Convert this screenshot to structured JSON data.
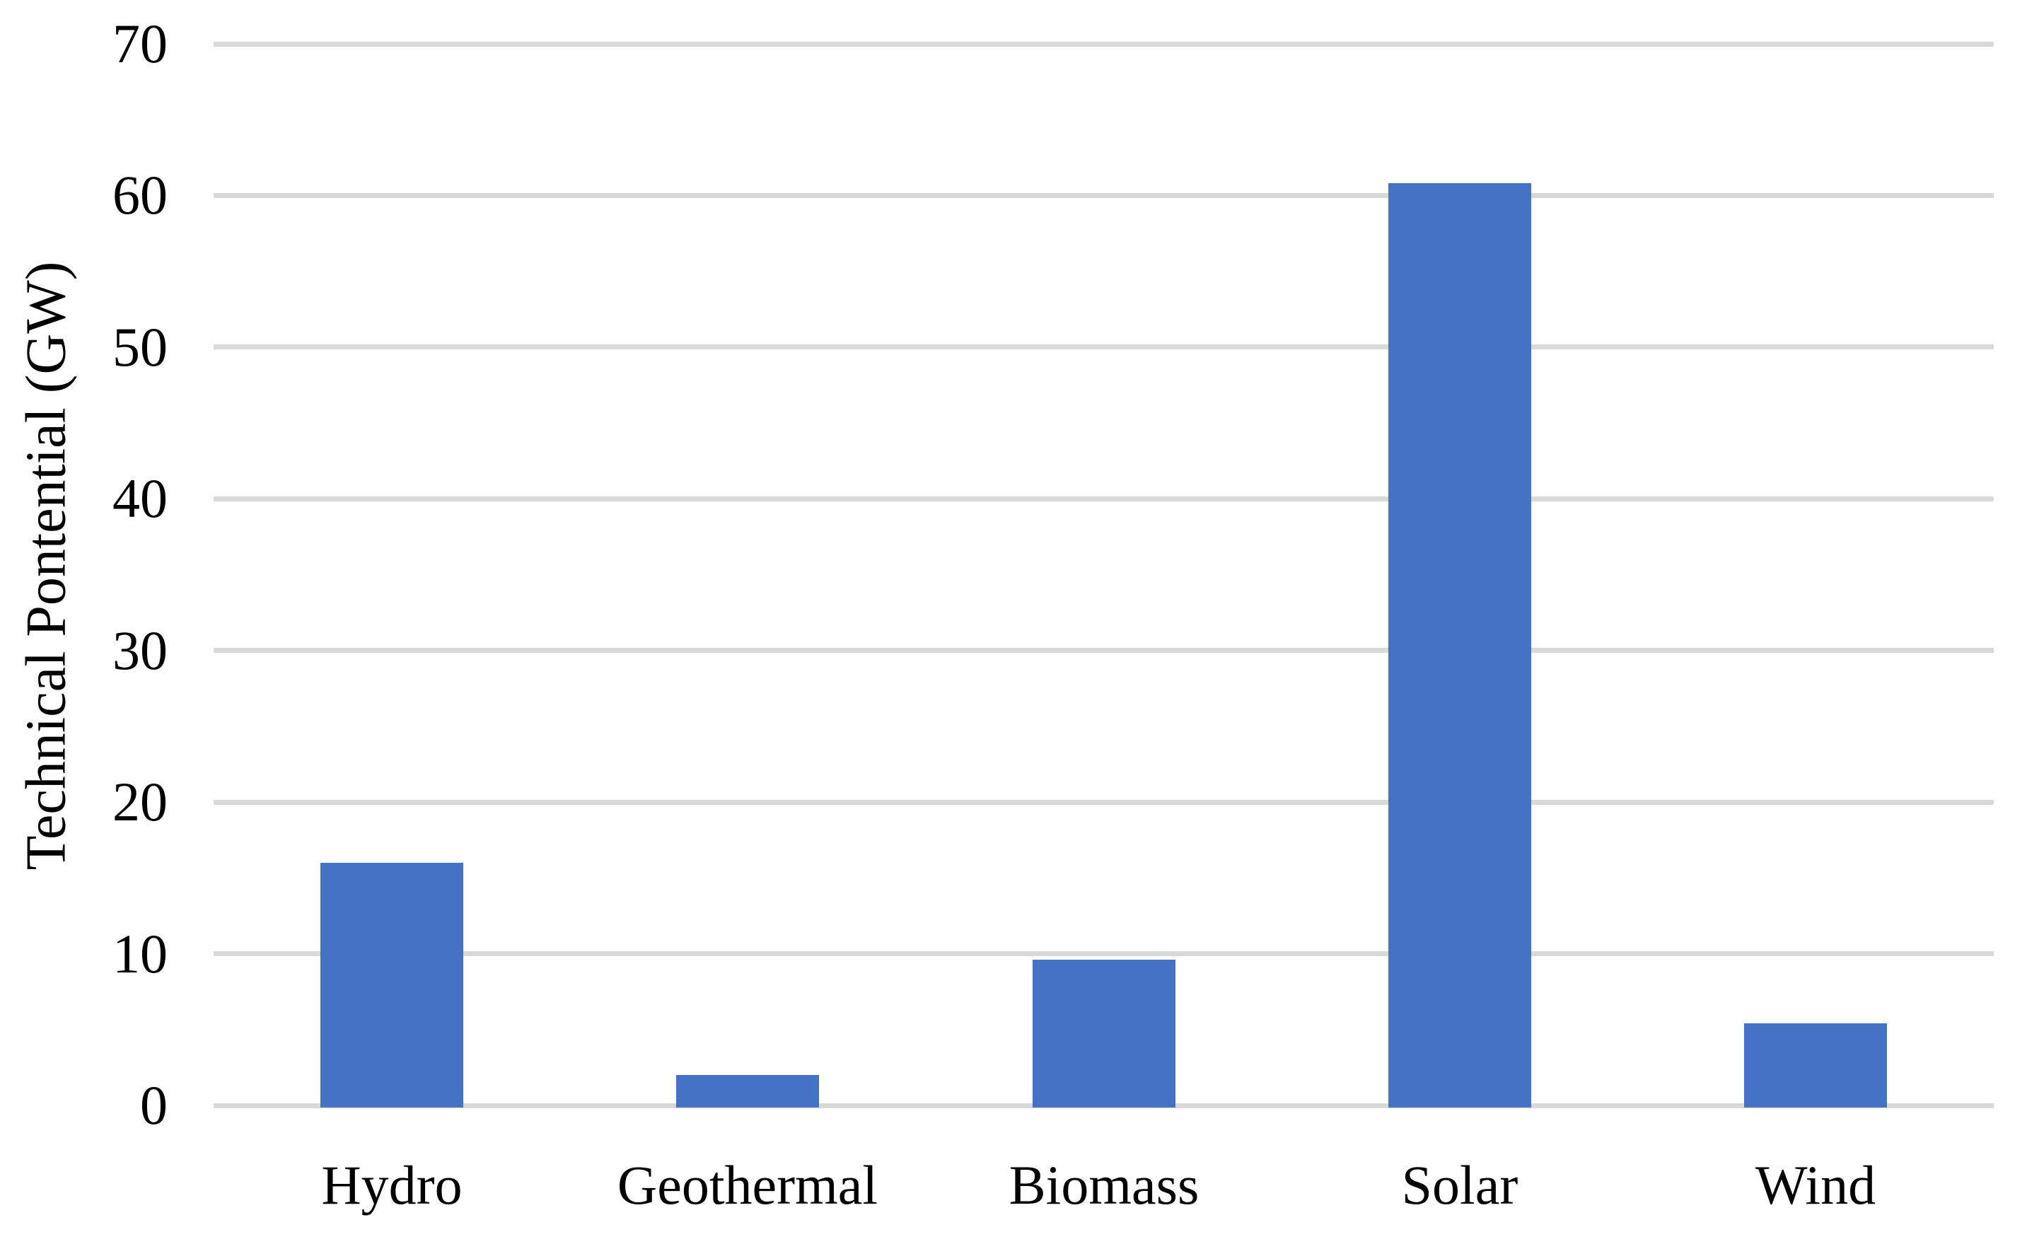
{
  "chart_data": {
    "type": "bar",
    "title": "",
    "categories": [
      "Hydro",
      "Geothermal",
      "Biomass",
      "Solar",
      "Wind"
    ],
    "values": [
      16,
      2,
      9.6,
      60.8,
      5.4
    ],
    "xlabel": "",
    "ylabel": "Technical Pontential (GW)",
    "yticks": [
      0,
      10,
      20,
      30,
      40,
      50,
      60,
      70
    ],
    "ylim": [
      0,
      70
    ],
    "grid": "horizontal",
    "legend": "none",
    "bar_color": "#4472C4",
    "gridline_color": "#D9D9D9"
  }
}
